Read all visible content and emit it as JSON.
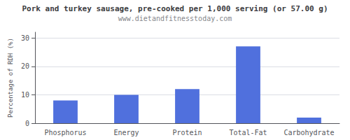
{
  "chart_data": {
    "type": "bar",
    "title": "Pork and turkey sausage, pre-cooked per 1,000 serving (or 57.00 g)",
    "subtitle": "www.dietandfitnesstoday.com",
    "categories": [
      "Phosphorus",
      "Energy",
      "Protein",
      "Total-Fat",
      "Carbohydrate"
    ],
    "values": [
      8,
      10,
      12,
      27,
      2
    ],
    "ylabel": "Percentage of RDH (%)",
    "ylim": [
      0,
      32
    ],
    "yticks": [
      0,
      10,
      20,
      30
    ],
    "grid": true
  }
}
